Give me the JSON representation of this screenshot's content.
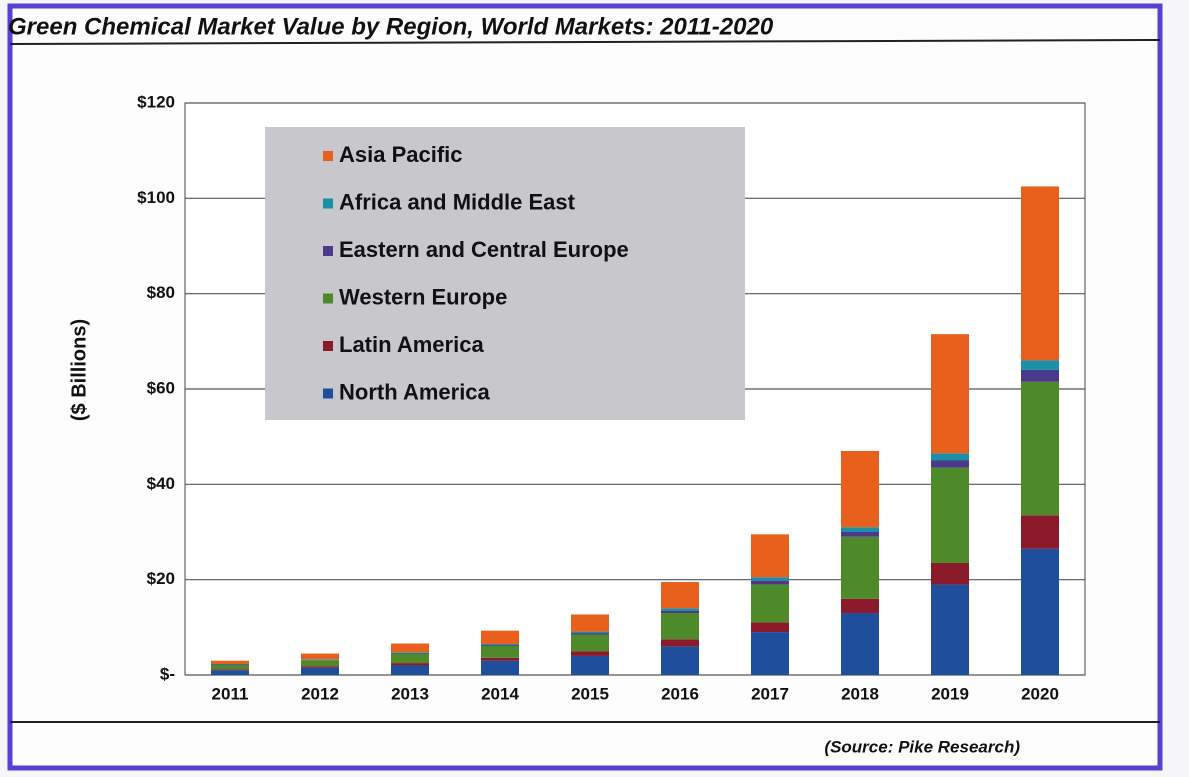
{
  "chart_data": {
    "type": "stacked-bar",
    "title": "Green Chemical Market Value by Region, World Markets: 2011-2020",
    "ylabel": "($ Billions)",
    "source": "(Source: Pike Research)",
    "categories": [
      "2011",
      "2012",
      "2013",
      "2014",
      "2015",
      "2016",
      "2017",
      "2018",
      "2019",
      "2020"
    ],
    "series": [
      {
        "name": "North America",
        "color": "#1f4e9c",
        "values": [
          1,
          1.5,
          2,
          3,
          4,
          6,
          9,
          13,
          19,
          26.5
        ]
      },
      {
        "name": "Latin America",
        "color": "#8b1a2a",
        "values": [
          0.2,
          0.3,
          0.5,
          0.6,
          1,
          1.5,
          2,
          3,
          4.5,
          7
        ]
      },
      {
        "name": "Western Europe",
        "color": "#4f8a2a",
        "values": [
          0.9,
          1.3,
          2,
          2.5,
          3.5,
          5.5,
          8,
          13,
          20,
          28
        ]
      },
      {
        "name": "Eastern and Central Europe",
        "color": "#4b3a8c",
        "values": [
          0.1,
          0.1,
          0.15,
          0.2,
          0.3,
          0.5,
          0.8,
          1,
          1.5,
          2.5
        ]
      },
      {
        "name": "Africa and Middle East",
        "color": "#1a8fa6",
        "values": [
          0.1,
          0.1,
          0.15,
          0.2,
          0.3,
          0.5,
          0.7,
          1,
          1.5,
          2
        ]
      },
      {
        "name": "Asia Pacific",
        "color": "#e8601c",
        "values": [
          0.7,
          1.2,
          1.8,
          2.8,
          3.6,
          5.5,
          9,
          16,
          25,
          36.5
        ]
      }
    ],
    "ylim": [
      0,
      120
    ],
    "yticks": [
      {
        "value": 0,
        "label": "$-"
      },
      {
        "value": 20,
        "label": "$20"
      },
      {
        "value": 40,
        "label": "$40"
      },
      {
        "value": 60,
        "label": "$60"
      },
      {
        "value": 80,
        "label": "$80"
      },
      {
        "value": 100,
        "label": "$100"
      },
      {
        "value": 120,
        "label": "$120"
      }
    ],
    "grid": true,
    "legend": "upper left"
  }
}
